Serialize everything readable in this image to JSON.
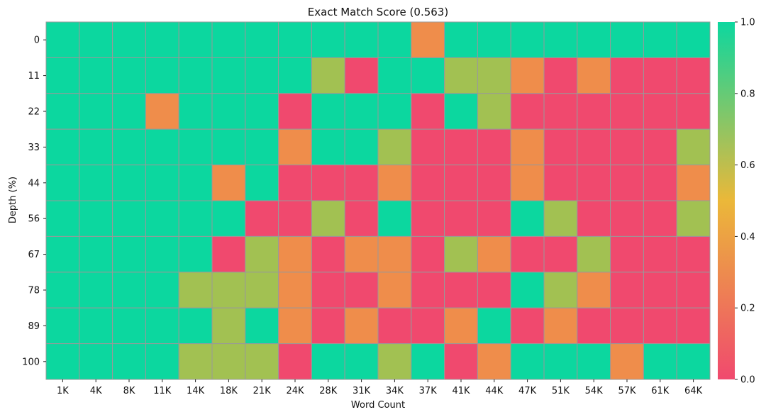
{
  "chart_data": {
    "type": "heatmap",
    "title": "Exact Match Score (0.563)",
    "xlabel": "Word Count",
    "ylabel": "Depth (%)",
    "x_categories": [
      "1K",
      "4K",
      "8K",
      "11K",
      "14K",
      "18K",
      "21K",
      "24K",
      "28K",
      "31K",
      "34K",
      "37K",
      "41K",
      "44K",
      "47K",
      "51K",
      "54K",
      "57K",
      "61K",
      "64K"
    ],
    "y_categories": [
      "0",
      "11",
      "22",
      "33",
      "44",
      "56",
      "67",
      "78",
      "89",
      "100"
    ],
    "values": [
      [
        1,
        1,
        1,
        1,
        1,
        1,
        1,
        1,
        1,
        1,
        1,
        0.33,
        1,
        1,
        1,
        1,
        1,
        1,
        1,
        1
      ],
      [
        1,
        1,
        1,
        1,
        1,
        1,
        1,
        1,
        0.67,
        0,
        1,
        1,
        0.67,
        0.67,
        0.33,
        0,
        0.33,
        0,
        0,
        0
      ],
      [
        1,
        1,
        1,
        0.33,
        1,
        1,
        1,
        0,
        1,
        1,
        1,
        0,
        1,
        0.67,
        0,
        0,
        0,
        0,
        0,
        0
      ],
      [
        1,
        1,
        1,
        1,
        1,
        1,
        1,
        0.33,
        1,
        1,
        0.67,
        0,
        0,
        0,
        0.33,
        0,
        0,
        0,
        0,
        0.67
      ],
      [
        1,
        1,
        1,
        1,
        1,
        0.33,
        1,
        0,
        0,
        0,
        0.33,
        0,
        0,
        0,
        0.33,
        0,
        0,
        0,
        0,
        0.33
      ],
      [
        1,
        1,
        1,
        1,
        1,
        1,
        0,
        0,
        0.67,
        0,
        1,
        0,
        0,
        0,
        1,
        0.67,
        0,
        0,
        0,
        0.67
      ],
      [
        1,
        1,
        1,
        1,
        1,
        0,
        0.67,
        0.33,
        0,
        0.33,
        0.33,
        0,
        0.67,
        0.33,
        0,
        0,
        0.67,
        0,
        0,
        0
      ],
      [
        1,
        1,
        1,
        1,
        0.67,
        0.67,
        0.67,
        0.33,
        0,
        0,
        0.33,
        0,
        0,
        0,
        1,
        0.67,
        0.33,
        0,
        0,
        0
      ],
      [
        1,
        1,
        1,
        1,
        1,
        0.67,
        1,
        0.33,
        0,
        0.33,
        0,
        0,
        0.33,
        1,
        0,
        0.33,
        0,
        0,
        0,
        0
      ],
      [
        1,
        1,
        1,
        1,
        0.67,
        0.67,
        0.67,
        0,
        1,
        1,
        0.67,
        1,
        0,
        0.33,
        1,
        1,
        1,
        0.33,
        1,
        1
      ]
    ],
    "colorbar": {
      "range": [
        0.0,
        1.0
      ],
      "ticks": [
        "0.0",
        "0.2",
        "0.4",
        "0.6",
        "0.8",
        "1.0"
      ],
      "stops": [
        "#F0496E",
        "#EBB839",
        "#0CD79F"
      ]
    },
    "cell_colors": {
      "0": "#F0496E",
      "0.33": "#EF8D4B",
      "0.67": "#A2C152",
      "1": "#0CD79F"
    },
    "grid_line_color": "#999999"
  }
}
